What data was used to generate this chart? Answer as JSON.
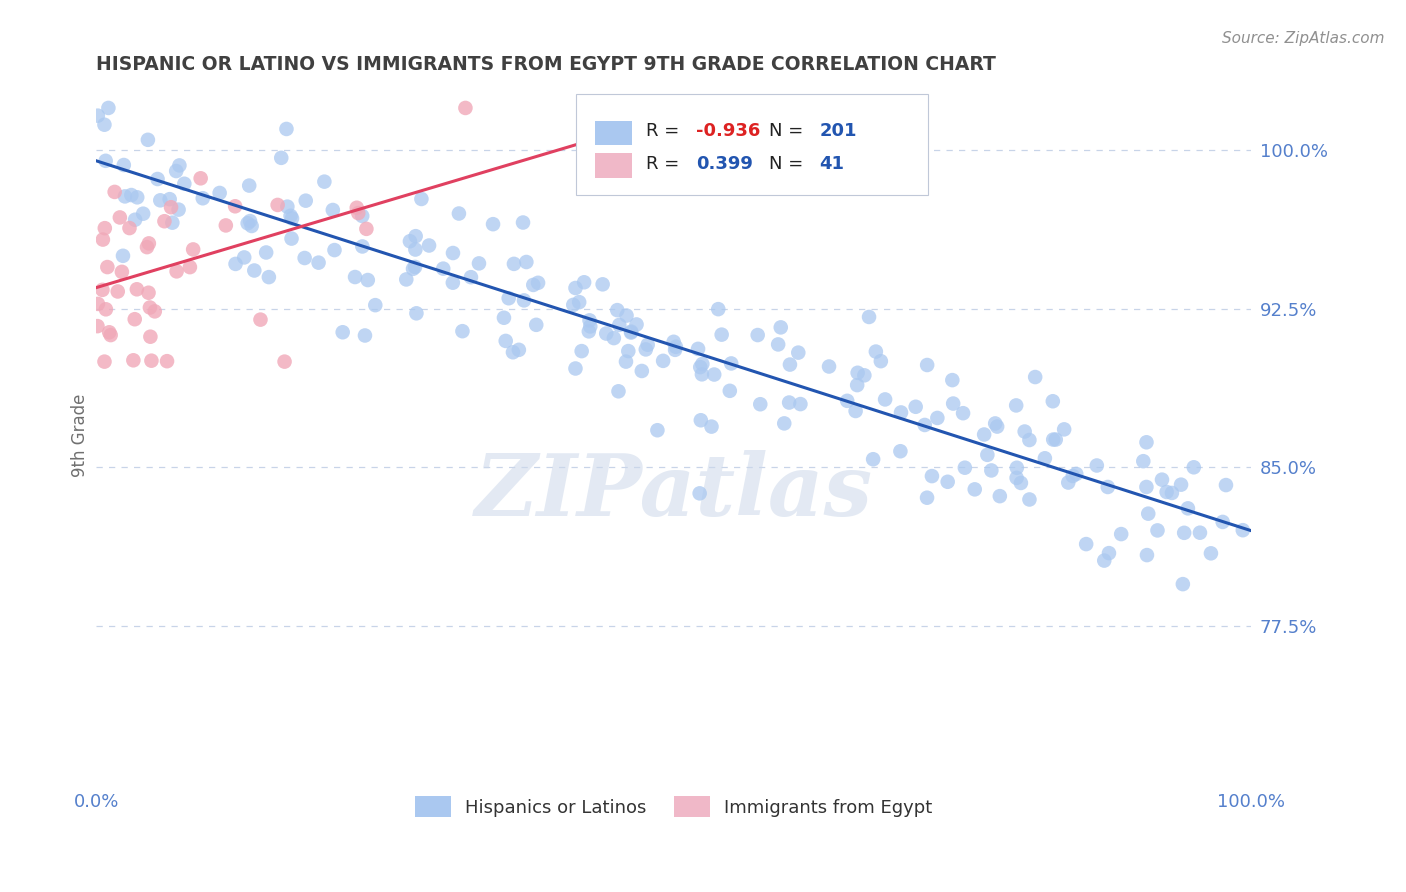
{
  "title": "HISPANIC OR LATINO VS IMMIGRANTS FROM EGYPT 9TH GRADE CORRELATION CHART",
  "source": "Source: ZipAtlas.com",
  "ylabel": "9th Grade",
  "xlim": [
    0.0,
    1.0
  ],
  "ylim": [
    0.7,
    1.03
  ],
  "yticks": [
    0.775,
    0.85,
    0.925,
    1.0
  ],
  "ytick_labels": [
    "77.5%",
    "85.0%",
    "92.5%",
    "100.0%"
  ],
  "xticks": [
    0.0,
    1.0
  ],
  "xtick_labels": [
    "0.0%",
    "100.0%"
  ],
  "blue_R": -0.936,
  "blue_N": 201,
  "pink_R": 0.399,
  "pink_N": 41,
  "blue_color": "#aac8f0",
  "pink_color": "#f0a8b8",
  "blue_line_color": "#2255b0",
  "pink_line_color": "#e04060",
  "blue_legend_color": "#aac8f0",
  "pink_legend_color": "#f0b8c8",
  "watermark_text": "ZIPatlas",
  "background_color": "#ffffff",
  "title_color": "#404040",
  "source_color": "#909090",
  "axis_label_color": "#707070",
  "tick_color": "#5580cc",
  "grid_color": "#c8d4e8",
  "legend_text_color": "#222222",
  "legend_value_color": "#2255b0",
  "blue_line_x0": 0.0,
  "blue_line_y0": 0.995,
  "blue_line_x1": 1.0,
  "blue_line_y1": 0.82,
  "pink_line_x0": 0.0,
  "pink_line_x1": 0.43,
  "pink_line_y0": 0.935,
  "pink_line_y1": 1.005
}
